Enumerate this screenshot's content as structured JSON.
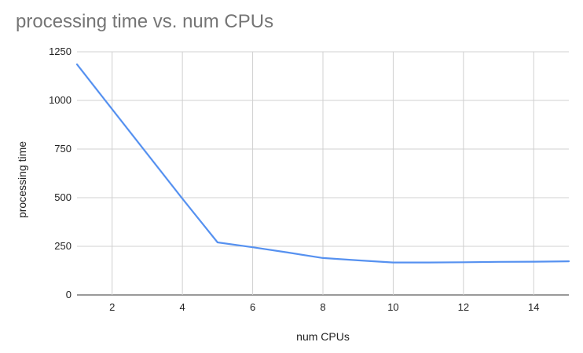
{
  "chart_data": {
    "type": "line",
    "title": "processing time vs. num CPUs",
    "xlabel": "num CPUs",
    "ylabel": "processing time",
    "xlim": [
      1,
      15
    ],
    "ylim": [
      0,
      1250
    ],
    "x_ticks": [
      2,
      4,
      6,
      8,
      10,
      12,
      14
    ],
    "y_ticks": [
      0,
      250,
      500,
      750,
      1000,
      1250
    ],
    "grid": true,
    "legend": "none",
    "series": [
      {
        "color": "#5691f0",
        "points": [
          {
            "x": 1,
            "y": 1185
          },
          {
            "x": 2,
            "y": 955
          },
          {
            "x": 3,
            "y": 725
          },
          {
            "x": 4,
            "y": 495
          },
          {
            "x": 5,
            "y": 270
          },
          {
            "x": 6,
            "y": 245
          },
          {
            "x": 7,
            "y": 218
          },
          {
            "x": 8,
            "y": 190
          },
          {
            "x": 9,
            "y": 178
          },
          {
            "x": 10,
            "y": 167
          },
          {
            "x": 11,
            "y": 167
          },
          {
            "x": 12,
            "y": 168
          },
          {
            "x": 13,
            "y": 170
          },
          {
            "x": 14,
            "y": 171
          },
          {
            "x": 15,
            "y": 173
          }
        ]
      }
    ]
  }
}
